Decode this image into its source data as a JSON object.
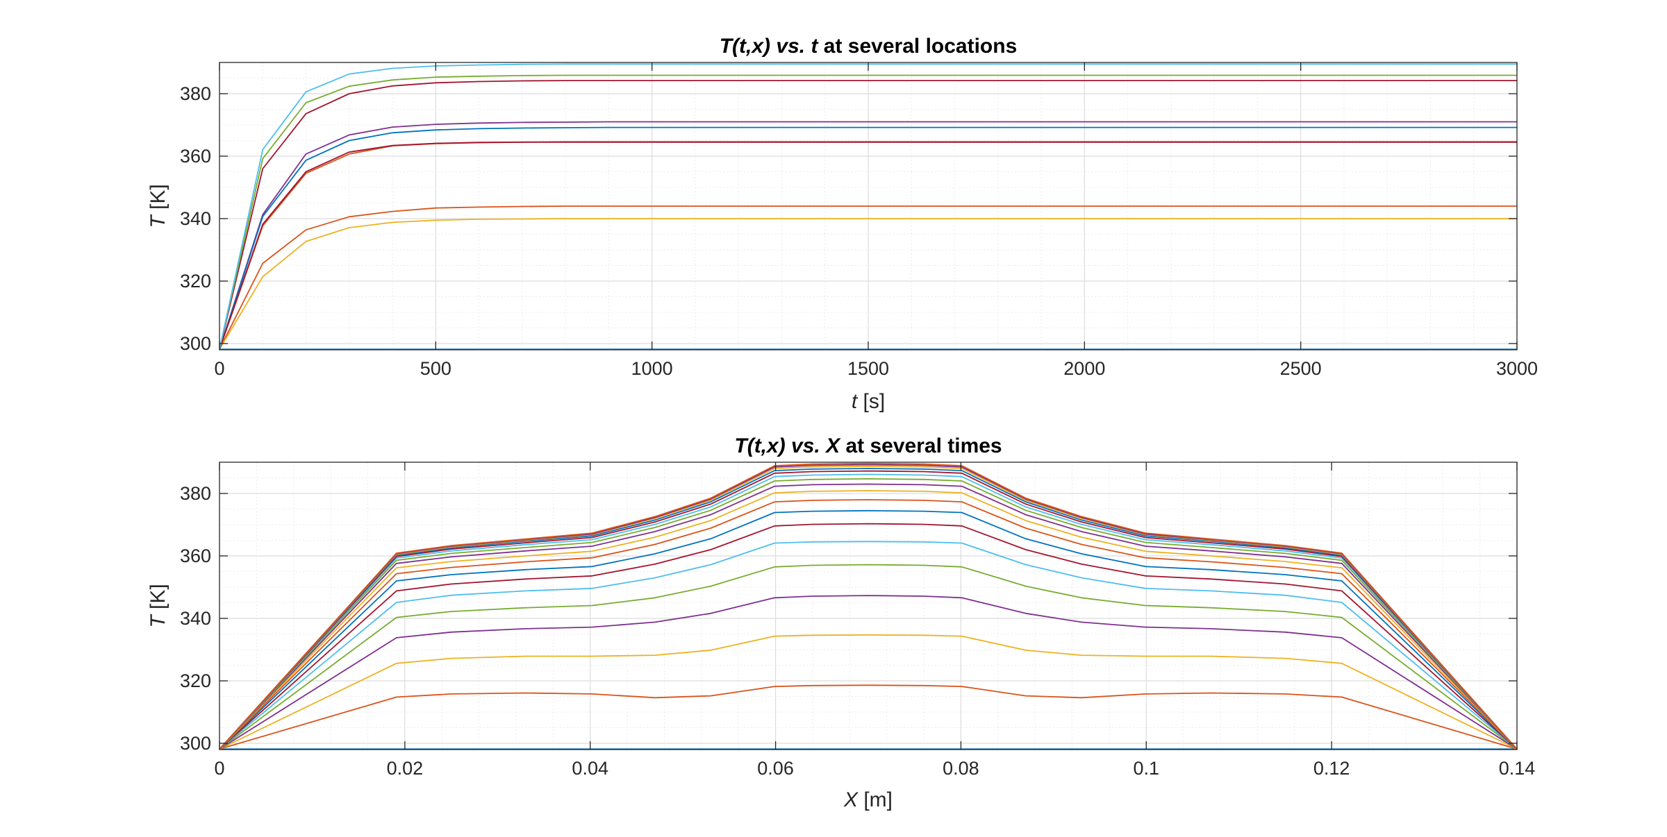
{
  "chart_data": [
    {
      "type": "line",
      "title": {
        "italic": "T(t,x)",
        "mid": "vs.",
        "var": "t",
        "rest": " at several locations"
      },
      "xlabel": {
        "italic": "t",
        "rest": " [s]"
      },
      "ylabel": {
        "italic": "T",
        "rest": " [K]"
      },
      "xlim": [
        0,
        3000
      ],
      "ylim": [
        298,
        390
      ],
      "xticks": [
        0,
        500,
        1000,
        1500,
        2000,
        2500,
        3000
      ],
      "yticks": [
        300,
        320,
        340,
        360,
        380
      ],
      "xtick_labels": [
        "0",
        "500",
        "1000",
        "1500",
        "2000",
        "2500",
        "3000"
      ],
      "ytick_labels": [
        "300",
        "320",
        "340",
        "360",
        "380"
      ],
      "grid": true,
      "minor_grid": true,
      "x": [
        0,
        100,
        200,
        300,
        400,
        500,
        600,
        700,
        800,
        900,
        1000,
        1500,
        2000,
        2500,
        3000
      ],
      "series": [
        {
          "color": "#0072BD",
          "values": [
            298.15,
            298.15,
            298.15,
            298.15,
            298.15,
            298.15,
            298.15,
            298.15,
            298.15,
            298.15,
            298.15,
            298.15,
            298.15,
            298.15,
            298.15
          ]
        },
        {
          "color": "#D95319",
          "values": [
            298.15,
            325.7,
            336.4,
            340.6,
            342.3,
            343.4,
            343.7,
            343.9,
            344.0,
            344.0,
            344.0,
            344.0,
            344.0,
            344.0,
            344.0
          ]
        },
        {
          "color": "#EDB120",
          "values": [
            298.15,
            321.4,
            332.7,
            337.1,
            338.8,
            339.5,
            339.8,
            339.9,
            340.0,
            340.0,
            340.0,
            340.0,
            340.0,
            340.0,
            340.0
          ]
        },
        {
          "color": "#7E2F8E",
          "values": [
            298.15,
            341.3,
            360.7,
            366.8,
            369.3,
            370.2,
            370.6,
            370.8,
            370.9,
            371.0,
            371.0,
            371.0,
            371.0,
            371.0,
            371.0
          ]
        },
        {
          "color": "#0072BD",
          "values": [
            298.15,
            340.7,
            358.7,
            365.0,
            367.5,
            368.4,
            368.8,
            369.0,
            369.1,
            369.2,
            369.2,
            369.2,
            369.2,
            369.2,
            369.2
          ]
        },
        {
          "color": "#D95319",
          "values": [
            298.15,
            337.7,
            354.5,
            360.7,
            363.3,
            364.0,
            364.3,
            364.5,
            364.6,
            364.6,
            364.6,
            364.6,
            364.6,
            364.6,
            364.6
          ]
        },
        {
          "color": "#A2142F",
          "values": [
            298.15,
            338.2,
            355.0,
            361.3,
            363.4,
            364.1,
            364.4,
            364.5,
            364.5,
            364.5,
            364.5,
            364.5,
            364.5,
            364.5,
            364.5
          ]
        },
        {
          "color": "#A2142F",
          "values": [
            298.15,
            356.0,
            373.6,
            380.0,
            382.5,
            383.5,
            383.9,
            384.1,
            384.2,
            384.2,
            384.2,
            384.2,
            384.2,
            384.2,
            384.2
          ]
        },
        {
          "color": "#77AC30",
          "values": [
            298.15,
            359.2,
            377.1,
            382.4,
            384.4,
            385.3,
            385.6,
            385.8,
            385.9,
            385.9,
            385.9,
            385.9,
            385.9,
            385.9,
            385.9
          ]
        },
        {
          "color": "#4DBEEE",
          "values": [
            298.15,
            362.1,
            380.6,
            386.3,
            388.1,
            388.9,
            389.2,
            389.4,
            389.5,
            389.5,
            389.5,
            389.5,
            389.5,
            389.5,
            389.5
          ]
        }
      ]
    },
    {
      "type": "line",
      "title": {
        "italic": "T(t,x)",
        "mid": "vs.",
        "var": "X",
        "rest": " at several times"
      },
      "xlabel": {
        "italic": "X",
        "rest": " [m]"
      },
      "ylabel": {
        "italic": "T",
        "rest": " [K]"
      },
      "xlim": [
        0,
        0.14
      ],
      "ylim": [
        298,
        390
      ],
      "xticks": [
        0,
        0.02,
        0.04,
        0.06,
        0.08,
        0.1,
        0.12,
        0.14
      ],
      "yticks": [
        300,
        320,
        340,
        360,
        380
      ],
      "xtick_labels": [
        "0",
        "0.02",
        "0.04",
        "0.06",
        "0.08",
        "0.1",
        "0.12",
        "0.14"
      ],
      "ytick_labels": [
        "300",
        "320",
        "340",
        "360",
        "380"
      ],
      "grid": true,
      "minor_grid": true,
      "x": [
        0,
        0.0191,
        0.025,
        0.033,
        0.0402,
        0.047,
        0.053,
        0.0599,
        0.064,
        0.07,
        0.076,
        0.0801,
        0.087,
        0.093,
        0.0999,
        0.107,
        0.115,
        0.1211,
        0.14
      ],
      "series": [
        {
          "color": "#0072BD",
          "values": [
            298.15,
            298.15,
            298.15,
            298.15,
            298.15,
            298.15,
            298.15,
            298.15,
            298.15,
            298.15,
            298.15,
            298.15,
            298.15,
            298.15,
            298.15,
            298.15,
            298.15,
            298.15,
            298.15
          ]
        },
        {
          "color": "#D95319",
          "values": [
            298.15,
            314.8,
            315.8,
            316.1,
            315.8,
            314.6,
            315.2,
            318.2,
            318.5,
            318.6,
            318.5,
            318.2,
            315.2,
            314.6,
            315.8,
            316.1,
            315.8,
            314.8,
            298.15
          ]
        },
        {
          "color": "#EDB120",
          "values": [
            298.15,
            325.6,
            327.2,
            327.9,
            327.9,
            328.2,
            329.8,
            334.3,
            334.6,
            334.7,
            334.6,
            334.3,
            329.8,
            328.2,
            327.9,
            327.9,
            327.2,
            325.6,
            298.15
          ]
        },
        {
          "color": "#7E2F8E",
          "values": [
            298.15,
            333.8,
            335.6,
            336.7,
            337.2,
            338.8,
            341.6,
            346.6,
            347.1,
            347.3,
            347.1,
            346.6,
            341.6,
            338.8,
            337.2,
            336.7,
            335.6,
            333.8,
            298.15
          ]
        },
        {
          "color": "#77AC30",
          "values": [
            298.15,
            340.3,
            342.2,
            343.4,
            344.1,
            346.6,
            350.3,
            356.5,
            357.0,
            357.2,
            357.0,
            356.5,
            350.3,
            346.6,
            344.1,
            343.4,
            342.2,
            340.3,
            298.15
          ]
        },
        {
          "color": "#4DBEEE",
          "values": [
            298.15,
            345.1,
            347.4,
            348.8,
            349.6,
            353.0,
            357.2,
            364.1,
            364.5,
            364.6,
            364.5,
            364.1,
            357.2,
            353.0,
            349.6,
            348.8,
            347.4,
            345.1,
            298.15
          ]
        },
        {
          "color": "#A2142F",
          "values": [
            298.15,
            348.8,
            351.0,
            352.6,
            353.6,
            357.4,
            362.0,
            369.6,
            370.1,
            370.3,
            370.1,
            369.6,
            362.0,
            357.4,
            353.6,
            352.6,
            351.0,
            348.8,
            298.15
          ]
        },
        {
          "color": "#0072BD",
          "values": [
            298.15,
            352.0,
            354.0,
            355.6,
            356.6,
            360.7,
            365.5,
            373.9,
            374.3,
            374.5,
            374.3,
            373.9,
            365.5,
            360.7,
            356.6,
            355.6,
            354.0,
            352.0,
            298.15
          ]
        },
        {
          "color": "#D95319",
          "values": [
            298.15,
            354.3,
            356.3,
            358.1,
            359.4,
            363.7,
            368.9,
            377.3,
            377.8,
            378.0,
            377.8,
            377.3,
            368.9,
            363.7,
            359.4,
            358.1,
            356.3,
            354.3,
            298.15
          ]
        },
        {
          "color": "#EDB120",
          "values": [
            298.15,
            356.2,
            358.2,
            360.0,
            361.5,
            366.0,
            371.3,
            380.2,
            380.7,
            380.9,
            380.7,
            380.2,
            371.3,
            366.0,
            361.5,
            360.0,
            358.2,
            356.2,
            298.15
          ]
        },
        {
          "color": "#7E2F8E",
          "values": [
            298.15,
            357.6,
            359.7,
            361.6,
            363.1,
            367.8,
            373.2,
            382.3,
            382.8,
            383.0,
            382.8,
            382.3,
            373.2,
            367.8,
            363.1,
            361.6,
            359.7,
            357.6,
            298.15
          ]
        },
        {
          "color": "#77AC30",
          "values": [
            298.15,
            358.6,
            360.8,
            362.7,
            364.3,
            369.1,
            374.6,
            384.0,
            384.5,
            384.7,
            384.5,
            384.0,
            374.6,
            369.1,
            364.3,
            362.7,
            360.8,
            358.6,
            298.15
          ]
        },
        {
          "color": "#4DBEEE",
          "values": [
            298.15,
            359.3,
            361.6,
            363.6,
            365.2,
            370.1,
            375.7,
            385.4,
            385.9,
            386.1,
            385.9,
            385.4,
            375.7,
            370.1,
            365.2,
            363.6,
            361.6,
            359.3,
            298.15
          ]
        },
        {
          "color": "#A2142F",
          "values": [
            298.15,
            359.8,
            362.2,
            364.2,
            365.9,
            370.9,
            376.6,
            386.5,
            387.0,
            387.2,
            387.0,
            386.5,
            376.6,
            370.9,
            365.9,
            364.2,
            362.2,
            359.8,
            298.15
          ]
        },
        {
          "color": "#0072BD",
          "values": [
            298.15,
            360.2,
            362.6,
            364.7,
            366.4,
            371.5,
            377.3,
            387.3,
            387.8,
            388.0,
            387.8,
            387.3,
            377.3,
            371.5,
            366.4,
            364.7,
            362.6,
            360.2,
            298.15
          ]
        },
        {
          "color": "#EDB120",
          "values": [
            298.15,
            360.5,
            362.9,
            365.0,
            366.8,
            372.0,
            377.8,
            388.0,
            388.5,
            388.7,
            388.5,
            388.0,
            377.8,
            372.0,
            366.8,
            365.0,
            362.9,
            360.5,
            298.15
          ]
        },
        {
          "color": "#7E2F8E",
          "values": [
            298.15,
            360.7,
            363.1,
            365.2,
            367.0,
            372.3,
            378.2,
            388.5,
            389.0,
            389.2,
            389.0,
            388.5,
            378.2,
            372.3,
            367.0,
            365.2,
            363.1,
            360.7,
            298.15
          ]
        },
        {
          "color": "#D95319",
          "values": [
            298.15,
            360.9,
            363.3,
            365.4,
            367.3,
            372.6,
            378.5,
            388.9,
            389.4,
            389.6,
            389.4,
            388.9,
            378.5,
            372.6,
            367.3,
            365.4,
            363.3,
            360.9,
            298.15
          ]
        }
      ]
    }
  ]
}
